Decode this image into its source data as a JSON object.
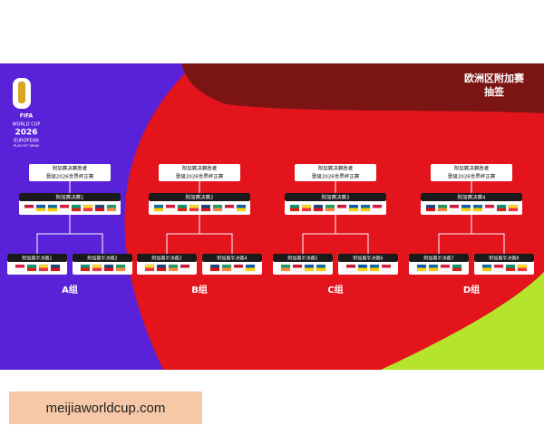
{
  "header": {
    "title": "欧洲区附加赛",
    "subtitle": "抽签"
  },
  "logo": {
    "brand": "FIFA",
    "line1": "WORLD CUP",
    "line2": "2026",
    "line3": "EUROPEAN",
    "line4": "PLAY-OFF DRAW"
  },
  "groups": [
    {
      "label": "A组",
      "winner": [
        "附加赛决赛胜者",
        "晋级2026世界杯正赛"
      ],
      "final": "附加赛决赛1",
      "semis": [
        "附加赛半决赛1",
        "附加赛半决赛2"
      ]
    },
    {
      "label": "B组",
      "winner": [
        "附加赛决赛胜者",
        "晋级2026世界杯正赛"
      ],
      "final": "附加赛决赛2",
      "semis": [
        "附加赛半决赛3",
        "附加赛半决赛4"
      ]
    },
    {
      "label": "C组",
      "winner": [
        "附加赛决赛胜者",
        "晋级2026世界杯正赛"
      ],
      "final": "附加赛决赛3",
      "semis": [
        "附加赛半决赛5",
        "附加赛半决赛6"
      ]
    },
    {
      "label": "D组",
      "winner": [
        "附加赛决赛胜者",
        "晋级2026世界杯正赛"
      ],
      "final": "附加赛决赛4",
      "semis": [
        "附加赛半决赛7",
        "附加赛半决赛8"
      ]
    }
  ],
  "watermark": "meijiaworldcup.com"
}
